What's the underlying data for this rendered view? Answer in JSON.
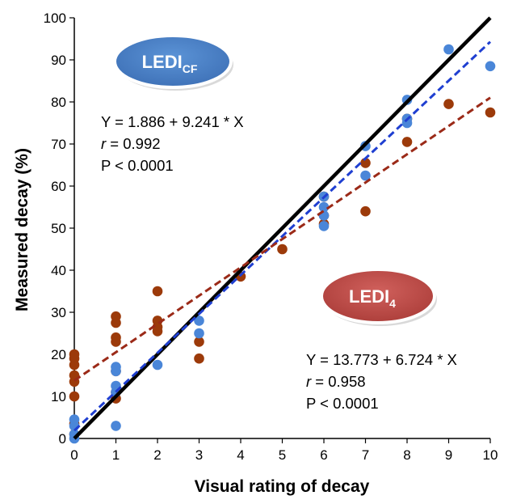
{
  "chart_data": {
    "type": "scatter",
    "title": "",
    "xlabel": "Visual rating of decay",
    "ylabel": "Measured decay (%)",
    "xlim": [
      0,
      10
    ],
    "ylim": [
      0,
      100
    ],
    "xticks": [
      "0",
      "1",
      "2",
      "3",
      "4",
      "5",
      "6",
      "7",
      "8",
      "9",
      "10"
    ],
    "yticks": [
      "0",
      "10",
      "20",
      "30",
      "40",
      "50",
      "60",
      "70",
      "80",
      "90",
      "100"
    ],
    "grid": false,
    "legend": "none",
    "colors": {
      "ledi_cf": "#4a86d8",
      "ledi_4": "#9c3a0a",
      "ledi_cf_fit": "#1f3fd1",
      "ledi_4_fit": "#9b2a18",
      "identity": "#000000",
      "badge_cf": "#4a7fc6",
      "badge_4": "#c0504d"
    },
    "series": [
      {
        "id": "ledi_cf",
        "points": [
          [
            0,
            0
          ],
          [
            0,
            1
          ],
          [
            0,
            3
          ],
          [
            0,
            4.5
          ],
          [
            1,
            3
          ],
          [
            1,
            11
          ],
          [
            1,
            12.5
          ],
          [
            1,
            16
          ],
          [
            1,
            17
          ],
          [
            2,
            17.5
          ],
          [
            3,
            25
          ],
          [
            3,
            28
          ],
          [
            6,
            50.5
          ],
          [
            6,
            53
          ],
          [
            6,
            55
          ],
          [
            6,
            57.5
          ],
          [
            7,
            62.5
          ],
          [
            7,
            69.5
          ],
          [
            8,
            75
          ],
          [
            8,
            76
          ],
          [
            8,
            80.5
          ],
          [
            9,
            92.5
          ],
          [
            10,
            88.5
          ]
        ]
      },
      {
        "id": "ledi_4",
        "points": [
          [
            0,
            1
          ],
          [
            0,
            3.5
          ],
          [
            0,
            10
          ],
          [
            0,
            13.5
          ],
          [
            0,
            15
          ],
          [
            0,
            17.5
          ],
          [
            0,
            19
          ],
          [
            0,
            20
          ],
          [
            1,
            9.5
          ],
          [
            1,
            11
          ],
          [
            1,
            16
          ],
          [
            1,
            23
          ],
          [
            1,
            24
          ],
          [
            1,
            27.5
          ],
          [
            1,
            29
          ],
          [
            2,
            25.5
          ],
          [
            2,
            26.5
          ],
          [
            2,
            28
          ],
          [
            2,
            35
          ],
          [
            3,
            19
          ],
          [
            3,
            23
          ],
          [
            4,
            38.5
          ],
          [
            5,
            45
          ],
          [
            6,
            51
          ],
          [
            6,
            53
          ],
          [
            6,
            57.5
          ],
          [
            7,
            54
          ],
          [
            7,
            65.5
          ],
          [
            8,
            70.5
          ],
          [
            8,
            76
          ],
          [
            9,
            79.5
          ],
          [
            10,
            77.5
          ]
        ]
      }
    ],
    "lines": [
      {
        "id": "identity",
        "from": [
          0,
          0
        ],
        "to": [
          10,
          100
        ],
        "style": "solid"
      },
      {
        "id": "ledi_cf_fit",
        "from": [
          0,
          1.886
        ],
        "to": [
          10,
          94.296
        ],
        "style": "dashed"
      },
      {
        "id": "ledi_4_fit",
        "from": [
          0,
          13.773
        ],
        "to": [
          10,
          81.013
        ],
        "style": "dashed"
      }
    ],
    "annotations": {
      "cf_badge": {
        "label": "LEDI",
        "sub": "CF"
      },
      "cf_eq": "Y = 1.886 + 9.241 * X",
      "cf_r_sym": "r",
      "cf_r": " = 0.992",
      "cf_p": "P < 0.0001",
      "f4_badge": {
        "label": "LEDI",
        "sub": "4"
      },
      "f4_eq": "Y = 13.773 + 6.724 * X",
      "f4_r_sym": "r",
      "f4_r": " = 0.958",
      "f4_p": "P < 0.0001"
    }
  }
}
